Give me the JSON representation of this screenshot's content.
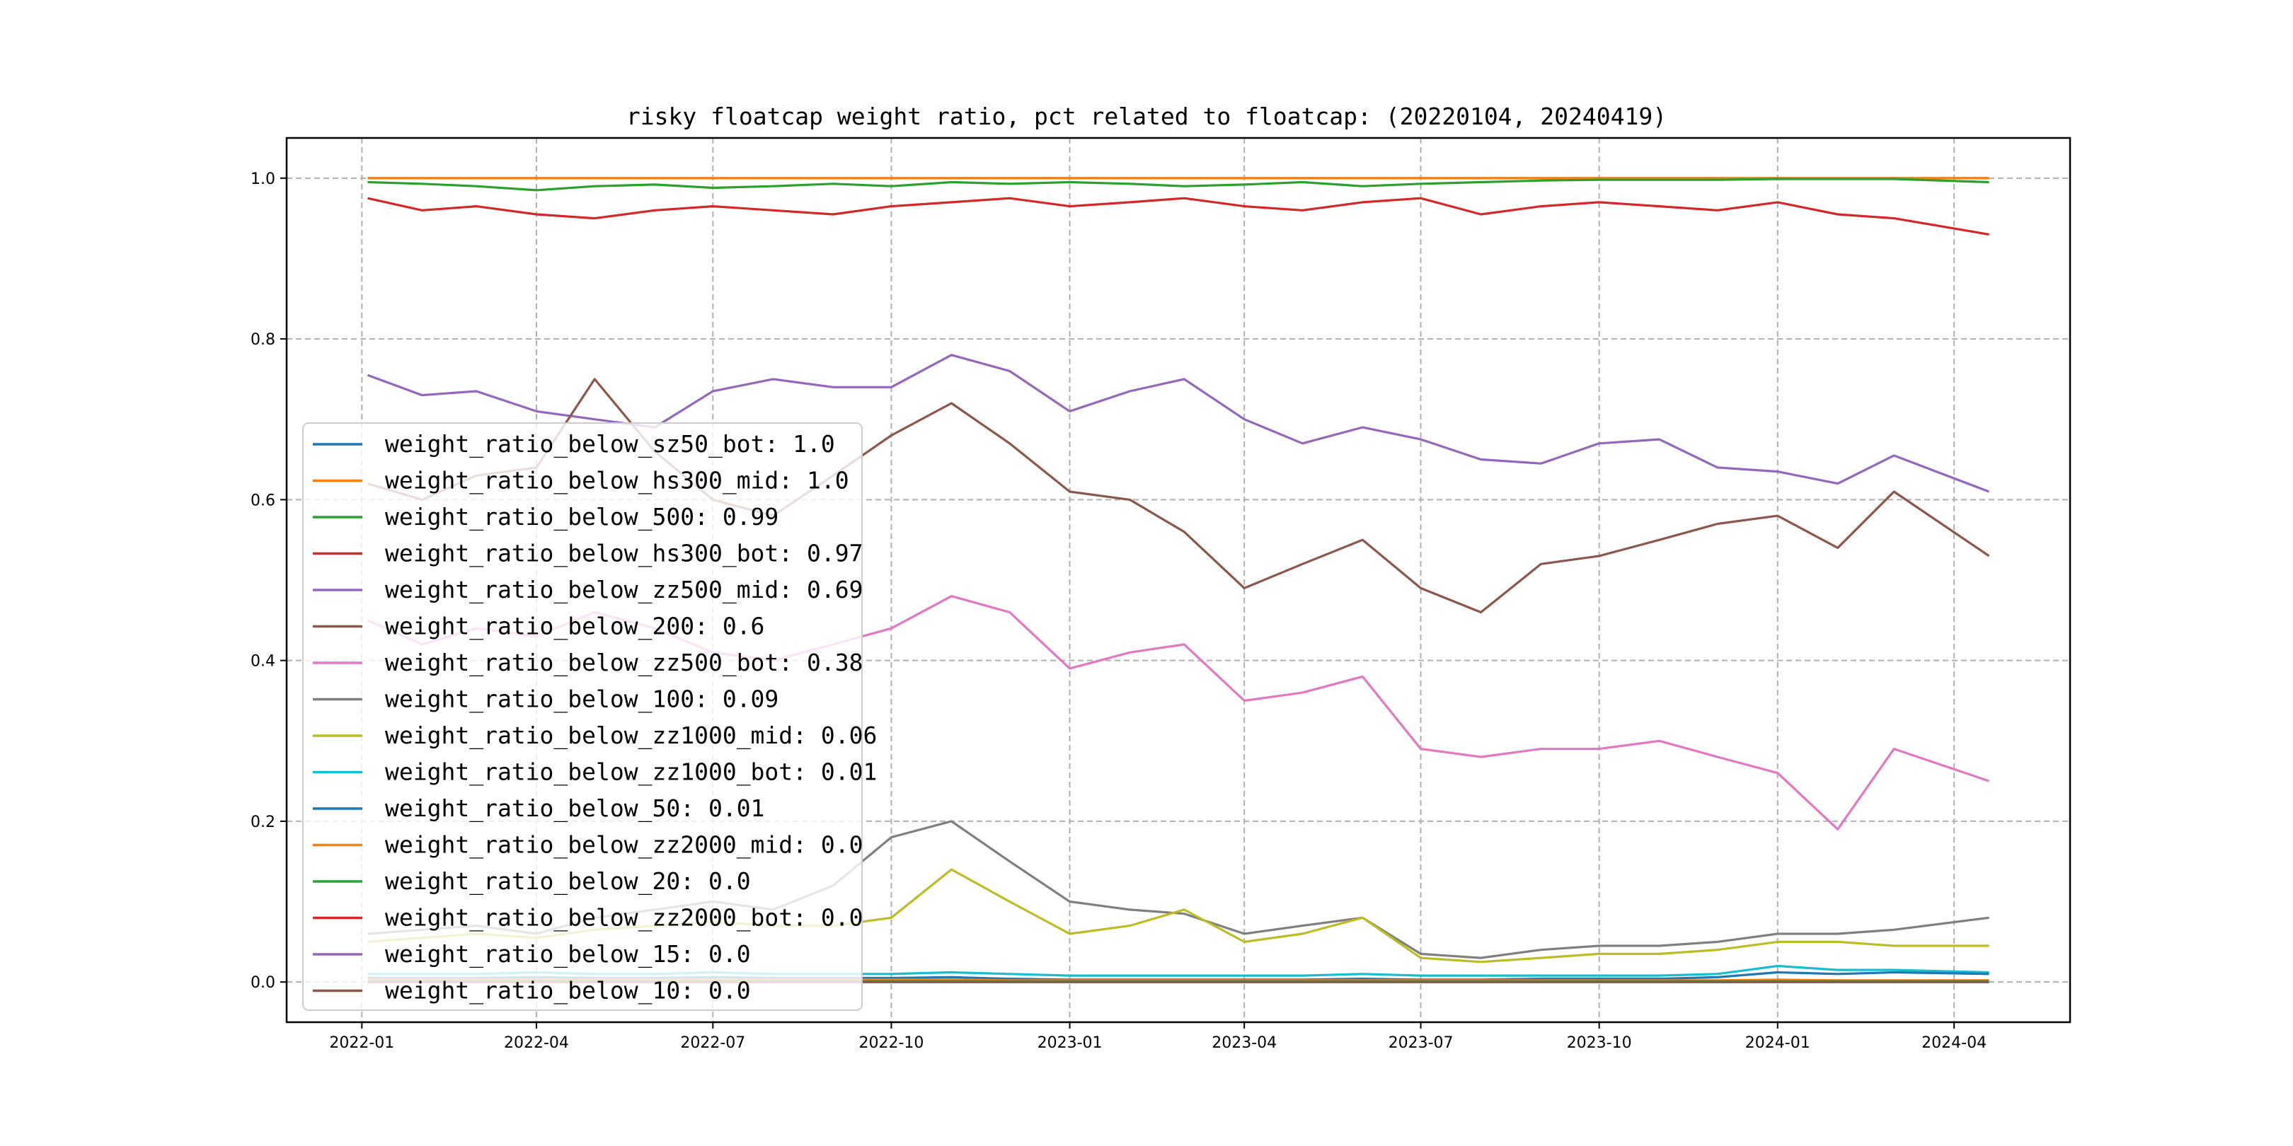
{
  "chart_data": {
    "type": "line",
    "title": "risky floatcap weight ratio, pct related to floatcap: (20220104, 20240419)",
    "xlabel": "",
    "ylabel": "",
    "x_start": "2022-01-04",
    "x_end": "2024-04-19",
    "x_ticks": [
      "2022-01",
      "2022-04",
      "2022-07",
      "2022-10",
      "2023-01",
      "2023-04",
      "2023-07",
      "2023-10",
      "2024-01",
      "2024-04"
    ],
    "ylim": [
      -0.05,
      1.05
    ],
    "y_ticks": [
      "0.0",
      "0.2",
      "0.4",
      "0.6",
      "0.8",
      "1.0"
    ],
    "grid": true,
    "legend_position": "lower-left",
    "x": [
      "2022-01-04",
      "2022-02-01",
      "2022-03-01",
      "2022-04-01",
      "2022-05-01",
      "2022-06-01",
      "2022-07-01",
      "2022-08-01",
      "2022-09-01",
      "2022-10-01",
      "2022-11-01",
      "2022-12-01",
      "2023-01-01",
      "2023-02-01",
      "2023-03-01",
      "2023-04-01",
      "2023-05-01",
      "2023-06-01",
      "2023-07-01",
      "2023-08-01",
      "2023-09-01",
      "2023-10-01",
      "2023-11-01",
      "2023-12-01",
      "2024-01-01",
      "2024-02-01",
      "2024-03-01",
      "2024-04-19"
    ],
    "series": [
      {
        "name": "weight_ratio_below_sz50_bot",
        "legend": "weight_ratio_below_sz50_bot: 1.0",
        "color": "#1f77b4",
        "values": [
          1.0,
          1.0,
          1.0,
          1.0,
          1.0,
          1.0,
          1.0,
          1.0,
          1.0,
          1.0,
          1.0,
          1.0,
          1.0,
          1.0,
          1.0,
          1.0,
          1.0,
          1.0,
          1.0,
          1.0,
          1.0,
          1.0,
          1.0,
          1.0,
          1.0,
          1.0,
          1.0,
          1.0
        ]
      },
      {
        "name": "weight_ratio_below_hs300_mid",
        "legend": "weight_ratio_below_hs300_mid: 1.0",
        "color": "#ff7f0e",
        "values": [
          1.0,
          1.0,
          1.0,
          1.0,
          1.0,
          1.0,
          1.0,
          1.0,
          1.0,
          1.0,
          1.0,
          1.0,
          1.0,
          1.0,
          1.0,
          1.0,
          1.0,
          1.0,
          1.0,
          1.0,
          1.0,
          1.0,
          1.0,
          1.0,
          1.0,
          1.0,
          1.0,
          1.0
        ]
      },
      {
        "name": "weight_ratio_below_500",
        "legend": "weight_ratio_below_500: 0.99",
        "color": "#2ca02c",
        "values": [
          0.995,
          0.993,
          0.99,
          0.985,
          0.99,
          0.992,
          0.988,
          0.99,
          0.993,
          0.99,
          0.995,
          0.993,
          0.995,
          0.993,
          0.99,
          0.992,
          0.995,
          0.99,
          0.993,
          0.995,
          0.997,
          0.998,
          0.998,
          0.998,
          0.999,
          0.999,
          0.999,
          0.995
        ]
      },
      {
        "name": "weight_ratio_below_hs300_bot",
        "legend": "weight_ratio_below_hs300_bot: 0.97",
        "color": "#d62728",
        "values": [
          0.975,
          0.96,
          0.965,
          0.955,
          0.95,
          0.96,
          0.965,
          0.96,
          0.955,
          0.965,
          0.97,
          0.975,
          0.965,
          0.97,
          0.975,
          0.965,
          0.96,
          0.97,
          0.975,
          0.955,
          0.965,
          0.97,
          0.965,
          0.96,
          0.97,
          0.955,
          0.95,
          0.93
        ]
      },
      {
        "name": "weight_ratio_below_zz500_mid",
        "legend": "weight_ratio_below_zz500_mid: 0.69",
        "color": "#9467bd",
        "values": [
          0.755,
          0.73,
          0.735,
          0.71,
          0.7,
          0.69,
          0.735,
          0.75,
          0.74,
          0.74,
          0.78,
          0.76,
          0.71,
          0.735,
          0.75,
          0.7,
          0.67,
          0.69,
          0.675,
          0.65,
          0.645,
          0.67,
          0.675,
          0.64,
          0.635,
          0.62,
          0.655,
          0.61
        ]
      },
      {
        "name": "weight_ratio_below_200",
        "legend": "weight_ratio_below_200: 0.6",
        "color": "#8c564b",
        "values": [
          0.62,
          0.6,
          0.63,
          0.64,
          0.75,
          0.66,
          0.6,
          0.58,
          0.63,
          0.68,
          0.72,
          0.67,
          0.61,
          0.6,
          0.56,
          0.49,
          0.52,
          0.55,
          0.49,
          0.46,
          0.52,
          0.53,
          0.55,
          0.57,
          0.58,
          0.54,
          0.61,
          0.53
        ]
      },
      {
        "name": "weight_ratio_below_zz500_bot",
        "legend": "weight_ratio_below_zz500_bot: 0.38",
        "color": "#e377c2",
        "values": [
          0.45,
          0.42,
          0.44,
          0.43,
          0.46,
          0.44,
          0.41,
          0.4,
          0.42,
          0.44,
          0.48,
          0.46,
          0.39,
          0.41,
          0.42,
          0.35,
          0.36,
          0.38,
          0.29,
          0.28,
          0.29,
          0.29,
          0.3,
          0.28,
          0.26,
          0.19,
          0.29,
          0.25
        ]
      },
      {
        "name": "weight_ratio_below_100",
        "legend": "weight_ratio_below_100: 0.09",
        "color": "#7f7f7f",
        "values": [
          0.06,
          0.065,
          0.07,
          0.06,
          0.08,
          0.09,
          0.1,
          0.09,
          0.12,
          0.18,
          0.2,
          0.15,
          0.1,
          0.09,
          0.085,
          0.06,
          0.07,
          0.08,
          0.035,
          0.03,
          0.04,
          0.045,
          0.045,
          0.05,
          0.06,
          0.06,
          0.065,
          0.08
        ]
      },
      {
        "name": "weight_ratio_below_zz1000_mid",
        "legend": "weight_ratio_below_zz1000_mid: 0.06",
        "color": "#bcbd22",
        "values": [
          0.05,
          0.055,
          0.06,
          0.055,
          0.065,
          0.07,
          0.075,
          0.07,
          0.07,
          0.08,
          0.14,
          0.1,
          0.06,
          0.07,
          0.09,
          0.05,
          0.06,
          0.08,
          0.03,
          0.025,
          0.03,
          0.035,
          0.035,
          0.04,
          0.05,
          0.05,
          0.045,
          0.045
        ]
      },
      {
        "name": "weight_ratio_below_zz1000_bot",
        "legend": "weight_ratio_below_zz1000_bot: 0.01",
        "color": "#17becf",
        "values": [
          0.01,
          0.01,
          0.01,
          0.012,
          0.01,
          0.01,
          0.012,
          0.01,
          0.01,
          0.01,
          0.012,
          0.01,
          0.008,
          0.008,
          0.008,
          0.008,
          0.008,
          0.01,
          0.008,
          0.008,
          0.008,
          0.008,
          0.008,
          0.01,
          0.02,
          0.015,
          0.015,
          0.012
        ]
      },
      {
        "name": "weight_ratio_below_50",
        "legend": "weight_ratio_below_50: 0.01",
        "color": "#1f77b4",
        "values": [
          0.005,
          0.005,
          0.005,
          0.006,
          0.005,
          0.005,
          0.006,
          0.005,
          0.005,
          0.005,
          0.006,
          0.004,
          0.003,
          0.003,
          0.003,
          0.003,
          0.003,
          0.004,
          0.003,
          0.003,
          0.004,
          0.004,
          0.004,
          0.006,
          0.012,
          0.01,
          0.012,
          0.01
        ]
      },
      {
        "name": "weight_ratio_below_zz2000_mid",
        "legend": "weight_ratio_below_zz2000_mid: 0.0",
        "color": "#ff7f0e",
        "values": [
          0.003,
          0.003,
          0.003,
          0.003,
          0.003,
          0.003,
          0.003,
          0.003,
          0.003,
          0.003,
          0.003,
          0.002,
          0.002,
          0.002,
          0.002,
          0.002,
          0.002,
          0.002,
          0.002,
          0.002,
          0.002,
          0.002,
          0.002,
          0.002,
          0.003,
          0.002,
          0.002,
          0.002
        ]
      },
      {
        "name": "weight_ratio_below_20",
        "legend": "weight_ratio_below_20: 0.0",
        "color": "#2ca02c",
        "values": [
          0.001,
          0.001,
          0.001,
          0.001,
          0.001,
          0.001,
          0.001,
          0.001,
          0.001,
          0.001,
          0.001,
          0.001,
          0.001,
          0.001,
          0.001,
          0.001,
          0.001,
          0.001,
          0.001,
          0.001,
          0.001,
          0.001,
          0.001,
          0.001,
          0.001,
          0.001,
          0.001,
          0.001
        ]
      },
      {
        "name": "weight_ratio_below_zz2000_bot",
        "legend": "weight_ratio_below_zz2000_bot: 0.0",
        "color": "#d62728",
        "values": [
          0.0,
          0.0,
          0.0,
          0.0,
          0.0,
          0.0,
          0.0,
          0.0,
          0.0,
          0.0,
          0.0,
          0.0,
          0.0,
          0.0,
          0.0,
          0.0,
          0.0,
          0.0,
          0.0,
          0.0,
          0.0,
          0.0,
          0.0,
          0.0,
          0.0,
          0.0,
          0.0,
          0.0
        ]
      },
      {
        "name": "weight_ratio_below_15",
        "legend": "weight_ratio_below_15: 0.0",
        "color": "#9467bd",
        "values": [
          0.0,
          0.0,
          0.0,
          0.0,
          0.0,
          0.0,
          0.0,
          0.0,
          0.0,
          0.0,
          0.0,
          0.0,
          0.0,
          0.0,
          0.0,
          0.0,
          0.0,
          0.0,
          0.0,
          0.0,
          0.0,
          0.0,
          0.0,
          0.0,
          0.0,
          0.0,
          0.0,
          0.0
        ]
      },
      {
        "name": "weight_ratio_below_10",
        "legend": "weight_ratio_below_10: 0.0",
        "color": "#8c564b",
        "values": [
          0.0,
          0.0,
          0.0,
          0.0,
          0.0,
          0.0,
          0.0,
          0.0,
          0.0,
          0.0,
          0.0,
          0.0,
          0.0,
          0.0,
          0.0,
          0.0,
          0.0,
          0.0,
          0.0,
          0.0,
          0.0,
          0.0,
          0.0,
          0.0,
          0.0,
          0.0,
          0.0,
          0.0
        ]
      }
    ]
  }
}
